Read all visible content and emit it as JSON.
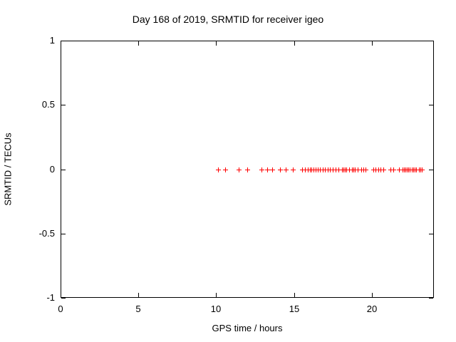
{
  "title": "Day 168 of 2019, SRMTID for receiver igeo",
  "colors": {
    "marker": "#ff0000",
    "grid": "#a0a0a0",
    "axis": "#000000",
    "background": "#ffffff",
    "text": "#000000"
  },
  "chart_data": {
    "type": "scatter",
    "title": "Day 168 of 2019, SRMTID for receiver igeo",
    "xlabel": "GPS time / hours",
    "ylabel": "SRMTID / TECUs",
    "xlim": [
      0,
      24
    ],
    "ylim": [
      -1,
      1
    ],
    "xticks": [
      0,
      5,
      10,
      15,
      20
    ],
    "xtick_labels": [
      "0",
      "5",
      "10",
      "15",
      "20"
    ],
    "yticks": [
      1,
      0.5,
      0,
      -0.5,
      -1
    ],
    "ytick_labels": [
      "1",
      "0.5",
      "0",
      "-0.5",
      "-1"
    ],
    "grid": true,
    "grid_style": "dotted",
    "legend": false,
    "marker": "plus",
    "series": [
      {
        "name": "SRMTID",
        "x": [
          10.12,
          10.58,
          11.45,
          12.0,
          12.92,
          13.28,
          13.6,
          14.11,
          14.47,
          14.93,
          15.53,
          15.71,
          15.89,
          16.01,
          16.12,
          16.26,
          16.4,
          16.53,
          16.67,
          16.85,
          16.99,
          17.18,
          17.31,
          17.5,
          17.68,
          17.86,
          18.09,
          18.18,
          18.27,
          18.37,
          18.55,
          18.71,
          18.82,
          18.92,
          19.1,
          19.31,
          19.47,
          19.62,
          20.11,
          20.24,
          20.43,
          20.56,
          20.75,
          21.21,
          21.39,
          21.76,
          21.98,
          22.08,
          22.17,
          22.26,
          22.35,
          22.44,
          22.58,
          22.67,
          22.76,
          22.85,
          23.04,
          23.13,
          23.22
        ],
        "y": [
          0,
          0,
          0,
          0,
          0,
          0,
          0,
          0,
          0,
          0,
          0,
          0,
          0,
          0,
          0,
          0,
          0,
          0,
          0,
          0,
          0,
          0,
          0,
          0,
          0,
          0,
          0,
          0,
          0,
          0,
          0,
          0,
          0,
          0,
          0,
          0,
          0,
          0,
          0,
          0,
          0,
          0,
          0,
          0,
          0,
          0,
          0,
          0,
          0,
          0,
          0,
          0,
          0,
          0,
          0,
          0,
          0,
          0,
          0
        ]
      }
    ]
  }
}
